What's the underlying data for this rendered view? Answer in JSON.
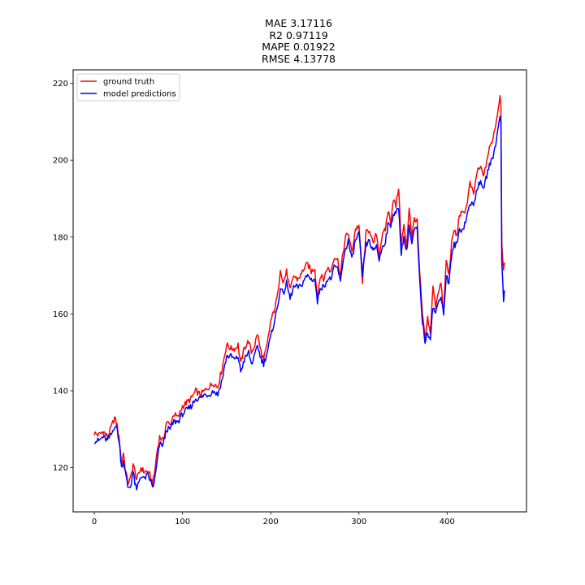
{
  "chart_data": {
    "type": "line",
    "title_lines": [
      "MAE 3.17116",
      "R2 0.97119",
      "MAPE 0.01922",
      "RMSE 4.13778"
    ],
    "xlabel": "",
    "ylabel": "",
    "xlim": [
      -24,
      490
    ],
    "ylim": [
      108.5,
      223.5
    ],
    "x_ticks": [
      0,
      100,
      200,
      300,
      400
    ],
    "y_ticks": [
      120,
      140,
      160,
      180,
      200,
      220
    ],
    "grid": false,
    "legend_position": "top-left",
    "n_points": 466,
    "series": [
      {
        "name": "ground truth",
        "color": "#ff0000",
        "keypoints": [
          [
            0,
            129
          ],
          [
            5,
            128.5
          ],
          [
            10,
            129.5
          ],
          [
            15,
            128
          ],
          [
            20,
            131
          ],
          [
            23,
            133
          ],
          [
            26,
            131
          ],
          [
            29,
            126
          ],
          [
            31,
            121
          ],
          [
            33,
            124
          ],
          [
            35,
            120
          ],
          [
            38,
            116
          ],
          [
            41,
            117
          ],
          [
            44,
            121
          ],
          [
            46,
            119
          ],
          [
            48,
            117
          ],
          [
            50,
            118
          ],
          [
            53,
            120
          ],
          [
            56,
            119
          ],
          [
            60,
            119
          ],
          [
            63,
            118
          ],
          [
            66,
            116
          ],
          [
            68,
            118
          ],
          [
            71,
            124
          ],
          [
            74,
            128
          ],
          [
            78,
            127
          ],
          [
            82,
            132
          ],
          [
            86,
            131
          ],
          [
            90,
            134
          ],
          [
            95,
            133
          ],
          [
            100,
            136
          ],
          [
            105,
            137
          ],
          [
            110,
            138
          ],
          [
            115,
            140
          ],
          [
            120,
            139
          ],
          [
            125,
            140
          ],
          [
            130,
            141
          ],
          [
            135,
            142
          ],
          [
            140,
            141
          ],
          [
            145,
            146
          ],
          [
            150,
            152
          ],
          [
            155,
            151
          ],
          [
            160,
            151
          ],
          [
            163,
            152
          ],
          [
            166,
            147
          ],
          [
            170,
            151
          ],
          [
            175,
            153
          ],
          [
            178,
            150
          ],
          [
            182,
            152
          ],
          [
            185,
            155
          ],
          [
            188,
            151
          ],
          [
            192,
            148
          ],
          [
            196,
            152
          ],
          [
            200,
            158
          ],
          [
            204,
            161
          ],
          [
            208,
            165
          ],
          [
            211,
            172
          ],
          [
            214,
            168
          ],
          [
            218,
            171
          ],
          [
            222,
            166
          ],
          [
            226,
            170
          ],
          [
            230,
            169
          ],
          [
            234,
            170
          ],
          [
            238,
            172
          ],
          [
            242,
            173
          ],
          [
            246,
            171
          ],
          [
            250,
            172
          ],
          [
            253,
            164
          ],
          [
            256,
            170
          ],
          [
            260,
            169
          ],
          [
            264,
            172
          ],
          [
            268,
            171
          ],
          [
            272,
            175
          ],
          [
            276,
            174
          ],
          [
            279,
            170
          ],
          [
            282,
            176
          ],
          [
            285,
            180
          ],
          [
            288,
            181
          ],
          [
            292,
            176
          ],
          [
            296,
            182
          ],
          [
            300,
            183
          ],
          [
            304,
            168
          ],
          [
            308,
            181
          ],
          [
            312,
            182
          ],
          [
            316,
            178
          ],
          [
            320,
            181
          ],
          [
            323,
            175
          ],
          [
            326,
            180
          ],
          [
            330,
            182
          ],
          [
            333,
            187
          ],
          [
            336,
            184
          ],
          [
            339,
            190
          ],
          [
            342,
            188
          ],
          [
            345,
            193
          ],
          [
            348,
            178
          ],
          [
            351,
            183
          ],
          [
            354,
            177
          ],
          [
            357,
            188
          ],
          [
            360,
            180
          ],
          [
            363,
            185
          ],
          [
            366,
            184
          ],
          [
            369,
            170
          ],
          [
            372,
            160
          ],
          [
            375,
            153
          ],
          [
            378,
            159
          ],
          [
            381,
            155
          ],
          [
            384,
            167
          ],
          [
            387,
            162
          ],
          [
            390,
            166
          ],
          [
            393,
            168
          ],
          [
            396,
            160
          ],
          [
            399,
            174
          ],
          [
            402,
            170
          ],
          [
            405,
            178
          ],
          [
            408,
            182
          ],
          [
            411,
            180
          ],
          [
            414,
            186
          ],
          [
            418,
            186
          ],
          [
            422,
            188
          ],
          [
            426,
            194
          ],
          [
            430,
            191
          ],
          [
            434,
            197
          ],
          [
            438,
            198
          ],
          [
            442,
            196
          ],
          [
            445,
            200
          ],
          [
            448,
            203
          ],
          [
            451,
            205
          ],
          [
            454,
            208
          ],
          [
            457,
            212
          ],
          [
            460,
            217
          ],
          [
            461,
            215
          ],
          [
            462,
            178
          ],
          [
            464,
            172
          ],
          [
            466,
            176
          ]
        ]
      },
      {
        "name": "model predictions",
        "color": "#0000ff",
        "keypoints": [
          [
            0,
            127
          ],
          [
            5,
            127
          ],
          [
            10,
            128
          ],
          [
            15,
            127
          ],
          [
            20,
            129
          ],
          [
            23,
            131
          ],
          [
            26,
            130
          ],
          [
            29,
            125
          ],
          [
            31,
            120
          ],
          [
            33,
            122
          ],
          [
            35,
            119
          ],
          [
            38,
            115
          ],
          [
            41,
            115
          ],
          [
            44,
            119
          ],
          [
            46,
            116
          ],
          [
            48,
            114
          ],
          [
            50,
            116
          ],
          [
            53,
            118
          ],
          [
            56,
            117
          ],
          [
            60,
            118
          ],
          [
            63,
            117
          ],
          [
            66,
            115
          ],
          [
            68,
            116
          ],
          [
            71,
            121
          ],
          [
            74,
            126
          ],
          [
            78,
            126
          ],
          [
            82,
            130
          ],
          [
            86,
            130
          ],
          [
            90,
            132
          ],
          [
            95,
            132
          ],
          [
            100,
            134
          ],
          [
            105,
            135
          ],
          [
            110,
            136
          ],
          [
            115,
            138
          ],
          [
            120,
            138
          ],
          [
            125,
            139
          ],
          [
            130,
            139
          ],
          [
            135,
            140
          ],
          [
            140,
            139
          ],
          [
            145,
            143
          ],
          [
            150,
            149
          ],
          [
            155,
            149
          ],
          [
            160,
            148
          ],
          [
            163,
            149
          ],
          [
            166,
            145
          ],
          [
            170,
            148
          ],
          [
            175,
            150
          ],
          [
            178,
            147
          ],
          [
            182,
            149
          ],
          [
            185,
            152
          ],
          [
            188,
            149
          ],
          [
            192,
            147
          ],
          [
            196,
            150
          ],
          [
            200,
            154
          ],
          [
            204,
            158
          ],
          [
            208,
            162
          ],
          [
            211,
            167
          ],
          [
            214,
            165
          ],
          [
            218,
            168
          ],
          [
            222,
            164
          ],
          [
            226,
            167
          ],
          [
            230,
            167
          ],
          [
            234,
            167
          ],
          [
            238,
            169
          ],
          [
            242,
            170
          ],
          [
            246,
            169
          ],
          [
            250,
            169
          ],
          [
            253,
            163
          ],
          [
            256,
            167
          ],
          [
            260,
            167
          ],
          [
            264,
            169
          ],
          [
            268,
            169
          ],
          [
            272,
            172
          ],
          [
            276,
            172
          ],
          [
            279,
            168
          ],
          [
            282,
            174
          ],
          [
            285,
            177
          ],
          [
            288,
            179
          ],
          [
            292,
            174
          ],
          [
            296,
            179
          ],
          [
            300,
            181
          ],
          [
            304,
            170
          ],
          [
            308,
            178
          ],
          [
            312,
            179
          ],
          [
            316,
            176
          ],
          [
            320,
            178
          ],
          [
            323,
            174
          ],
          [
            326,
            177
          ],
          [
            330,
            179
          ],
          [
            333,
            183
          ],
          [
            336,
            183
          ],
          [
            339,
            186
          ],
          [
            342,
            186
          ],
          [
            345,
            188
          ],
          [
            348,
            176
          ],
          [
            351,
            180
          ],
          [
            354,
            176
          ],
          [
            357,
            183
          ],
          [
            360,
            178
          ],
          [
            363,
            182
          ],
          [
            366,
            182
          ],
          [
            369,
            168
          ],
          [
            372,
            158
          ],
          [
            375,
            153
          ],
          [
            378,
            155
          ],
          [
            381,
            154
          ],
          [
            384,
            162
          ],
          [
            387,
            160
          ],
          [
            390,
            163
          ],
          [
            393,
            165
          ],
          [
            396,
            160
          ],
          [
            399,
            170
          ],
          [
            402,
            168
          ],
          [
            405,
            175
          ],
          [
            408,
            178
          ],
          [
            411,
            178
          ],
          [
            414,
            182
          ],
          [
            418,
            182
          ],
          [
            422,
            185
          ],
          [
            426,
            189
          ],
          [
            430,
            188
          ],
          [
            434,
            193
          ],
          [
            438,
            194
          ],
          [
            442,
            193
          ],
          [
            445,
            196
          ],
          [
            448,
            199
          ],
          [
            451,
            200
          ],
          [
            454,
            203
          ],
          [
            457,
            207
          ],
          [
            460,
            212
          ],
          [
            461,
            210
          ],
          [
            462,
            174
          ],
          [
            464,
            163
          ],
          [
            466,
            168
          ]
        ]
      }
    ]
  }
}
